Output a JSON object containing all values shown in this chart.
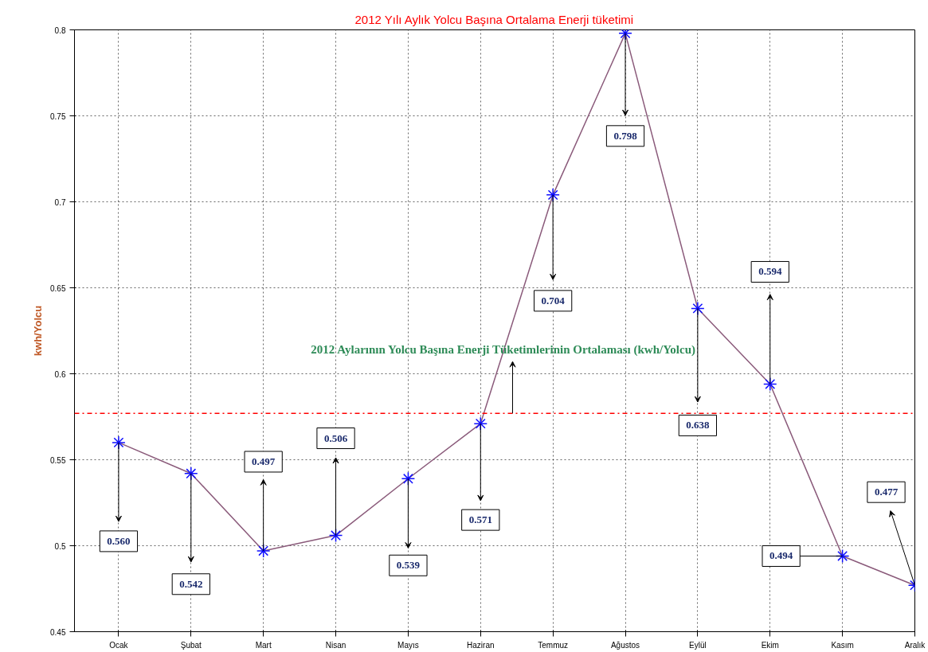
{
  "chart_data": {
    "type": "line",
    "title": "2012 Yılı Aylık Yolcu Başına Ortalama Enerji tüketimi",
    "ylabel": "kwh/Yolcu",
    "categories": [
      "Ocak",
      "Şubat",
      "Mart",
      "Nisan",
      "Mayıs",
      "Haziran",
      "Temmuz",
      "Ağustos",
      "Eylül",
      "Ekim",
      "Kasım",
      "Aralık"
    ],
    "series": [
      {
        "color": "#8a5a7a",
        "values": [
          0.56,
          0.542,
          0.497,
          0.506,
          0.539,
          0.571,
          0.704,
          0.798,
          0.638,
          0.594,
          0.494,
          0.477
        ]
      }
    ],
    "marker": "cross",
    "grid": true,
    "annotations": [
      "0.560",
      "0.542",
      "0.497",
      "0.506",
      "0.539",
      "0.571",
      "0.704",
      "0.798",
      "0.638",
      "0.594",
      {
        "text": "0.494",
        "x": "Kasım",
        "y": 0.494
      },
      "0.477"
    ],
    "ylim": [
      0.45,
      0.8
    ],
    "yticks": [
      0.45,
      0.5,
      0.55,
      0.6,
      0.65,
      0.7,
      0.75,
      0.8
    ],
    "ref_lines": [
      {
        "axis": "y",
        "value": 0.577,
        "label": "2012 Aylarının Yolcu Başına Enerji Tüketimlerinin Ortalaması (kwh/Yolcu)",
        "color": "#ff0000",
        "line_style": "dashdot"
      }
    ]
  }
}
